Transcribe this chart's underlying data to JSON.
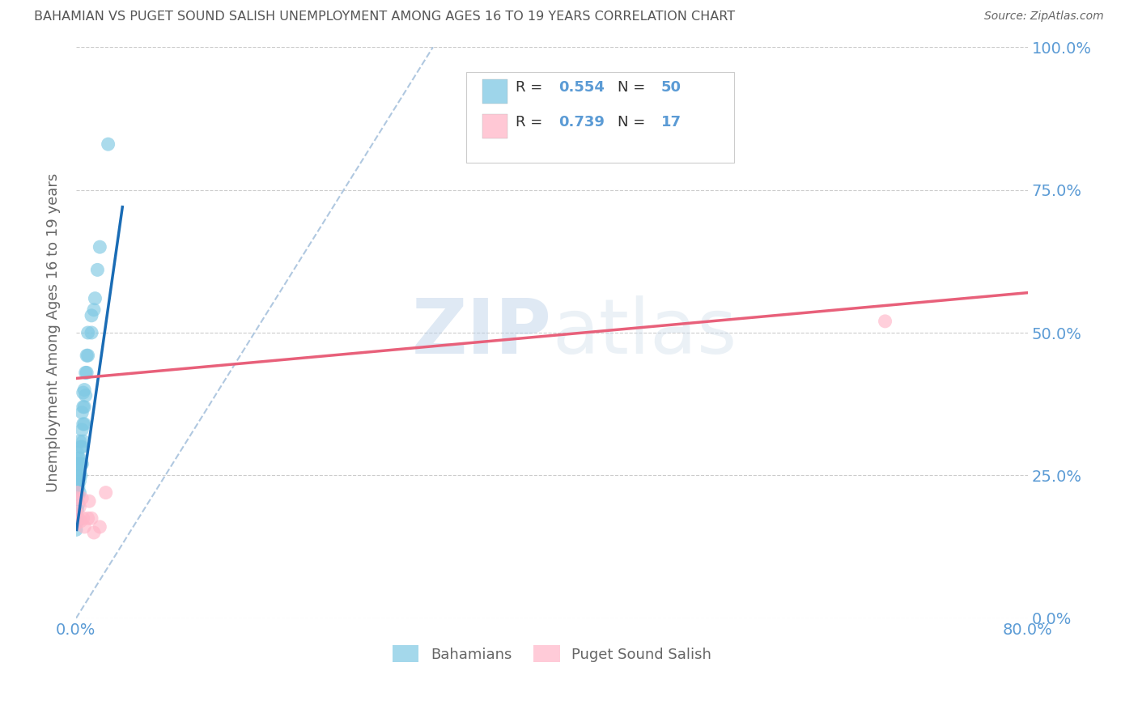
{
  "title": "BAHAMIAN VS PUGET SOUND SALISH UNEMPLOYMENT AMONG AGES 16 TO 19 YEARS CORRELATION CHART",
  "source": "Source: ZipAtlas.com",
  "ylabel": "Unemployment Among Ages 16 to 19 years",
  "xlim": [
    0.0,
    0.8
  ],
  "ylim": [
    0.0,
    1.0
  ],
  "legend_label1": "Bahamians",
  "legend_label2": "Puget Sound Salish",
  "R1": "0.554",
  "N1": "50",
  "R2": "0.739",
  "N2": "17",
  "bahamian_x": [
    0.0,
    0.0,
    0.0,
    0.0,
    0.0,
    0.001,
    0.001,
    0.001,
    0.001,
    0.001,
    0.001,
    0.001,
    0.001,
    0.002,
    0.002,
    0.002,
    0.002,
    0.002,
    0.003,
    0.003,
    0.003,
    0.003,
    0.003,
    0.004,
    0.004,
    0.004,
    0.005,
    0.005,
    0.005,
    0.005,
    0.006,
    0.006,
    0.006,
    0.006,
    0.007,
    0.007,
    0.007,
    0.008,
    0.008,
    0.009,
    0.009,
    0.01,
    0.01,
    0.013,
    0.013,
    0.015,
    0.016,
    0.018,
    0.02,
    0.027
  ],
  "bahamian_y": [
    0.155,
    0.175,
    0.195,
    0.215,
    0.23,
    0.17,
    0.19,
    0.205,
    0.22,
    0.235,
    0.25,
    0.27,
    0.29,
    0.2,
    0.215,
    0.23,
    0.25,
    0.28,
    0.22,
    0.24,
    0.26,
    0.28,
    0.31,
    0.25,
    0.27,
    0.3,
    0.27,
    0.3,
    0.33,
    0.36,
    0.31,
    0.34,
    0.37,
    0.395,
    0.34,
    0.37,
    0.4,
    0.39,
    0.43,
    0.43,
    0.46,
    0.46,
    0.5,
    0.5,
    0.53,
    0.54,
    0.56,
    0.61,
    0.65,
    0.83
  ],
  "puget_x": [
    0.0,
    0.0,
    0.001,
    0.001,
    0.002,
    0.003,
    0.004,
    0.005,
    0.006,
    0.007,
    0.01,
    0.011,
    0.013,
    0.015,
    0.02,
    0.025,
    0.68
  ],
  "puget_y": [
    0.165,
    0.185,
    0.21,
    0.22,
    0.175,
    0.195,
    0.17,
    0.21,
    0.175,
    0.16,
    0.175,
    0.205,
    0.175,
    0.15,
    0.16,
    0.22,
    0.52
  ],
  "blue_line_x": [
    0.0005,
    0.039
  ],
  "blue_line_y": [
    0.155,
    0.72
  ],
  "pink_line_x": [
    0.0,
    0.8
  ],
  "pink_line_y": [
    0.42,
    0.57
  ],
  "dashed_line_x": [
    0.0,
    0.3
  ],
  "dashed_line_y": [
    0.0,
    1.0
  ],
  "watermark_zip": "ZIP",
  "watermark_atlas": "atlas",
  "bg_color": "#ffffff",
  "blue_color": "#7ec8e3",
  "pink_color": "#ffb6c8",
  "blue_line_color": "#1a6cb5",
  "pink_line_color": "#e8607a",
  "dashed_color": "#b0c8e0",
  "grid_color": "#cccccc",
  "title_color": "#555555",
  "axis_label_color": "#666666",
  "right_tick_color": "#5b9bd5",
  "text_color": "#333333"
}
